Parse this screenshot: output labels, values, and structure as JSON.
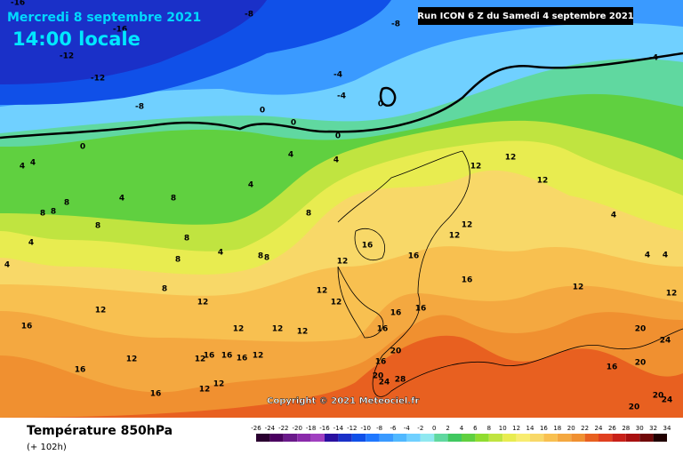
{
  "header": {
    "date": "Mercredi 8 septembre 2021",
    "time": "14:00 locale",
    "run": "Run ICON 6 Z du Samedi 4 septembre 2021"
  },
  "copyright": "Copyright © 2021 Meteociel.fr",
  "footer": {
    "title": "Température 850hPa",
    "lead": "(+ 102h)"
  },
  "scale": {
    "labels": [
      -26,
      -24,
      -22,
      -20,
      -18,
      -16,
      -14,
      -12,
      -10,
      -8,
      -6,
      -4,
      -2,
      0,
      2,
      4,
      6,
      8,
      10,
      12,
      14,
      16,
      18,
      20,
      22,
      24,
      26,
      28,
      30,
      32,
      34
    ],
    "colors": [
      "#2a0030",
      "#4a0060",
      "#6a1a8a",
      "#8a2aaa",
      "#a040c0",
      "#2a10a0",
      "#1a30c8",
      "#1050e8",
      "#2078ff",
      "#3a9aff",
      "#50b8ff",
      "#70d0ff",
      "#90e8f0",
      "#60d8a0",
      "#40c860",
      "#60d040",
      "#90dc30",
      "#c0e440",
      "#e8ec50",
      "#f8ec70",
      "#f8d868",
      "#f8c050",
      "#f4a840",
      "#f09030",
      "#e86020",
      "#e04020",
      "#c82018",
      "#a81010",
      "#700808",
      "#200000"
    ]
  },
  "contour_labels": [
    -16,
    -16,
    -8,
    -8,
    -12,
    -12,
    -8,
    -4,
    -4,
    -4,
    0,
    0,
    0,
    0,
    0,
    4,
    4,
    4,
    4,
    4,
    4,
    8,
    8,
    8,
    8,
    8,
    8,
    8,
    8,
    8,
    8,
    8,
    4,
    4,
    4,
    4,
    4,
    4,
    12,
    12,
    12,
    12,
    12,
    12,
    12,
    12,
    12,
    12,
    12,
    12,
    12,
    12,
    12,
    12,
    12,
    12,
    12,
    12,
    16,
    16,
    16,
    16,
    16,
    16,
    16,
    16,
    16,
    16,
    16,
    16,
    16,
    16,
    20,
    20,
    20,
    20,
    20,
    20,
    24,
    24,
    24,
    28
  ]
}
